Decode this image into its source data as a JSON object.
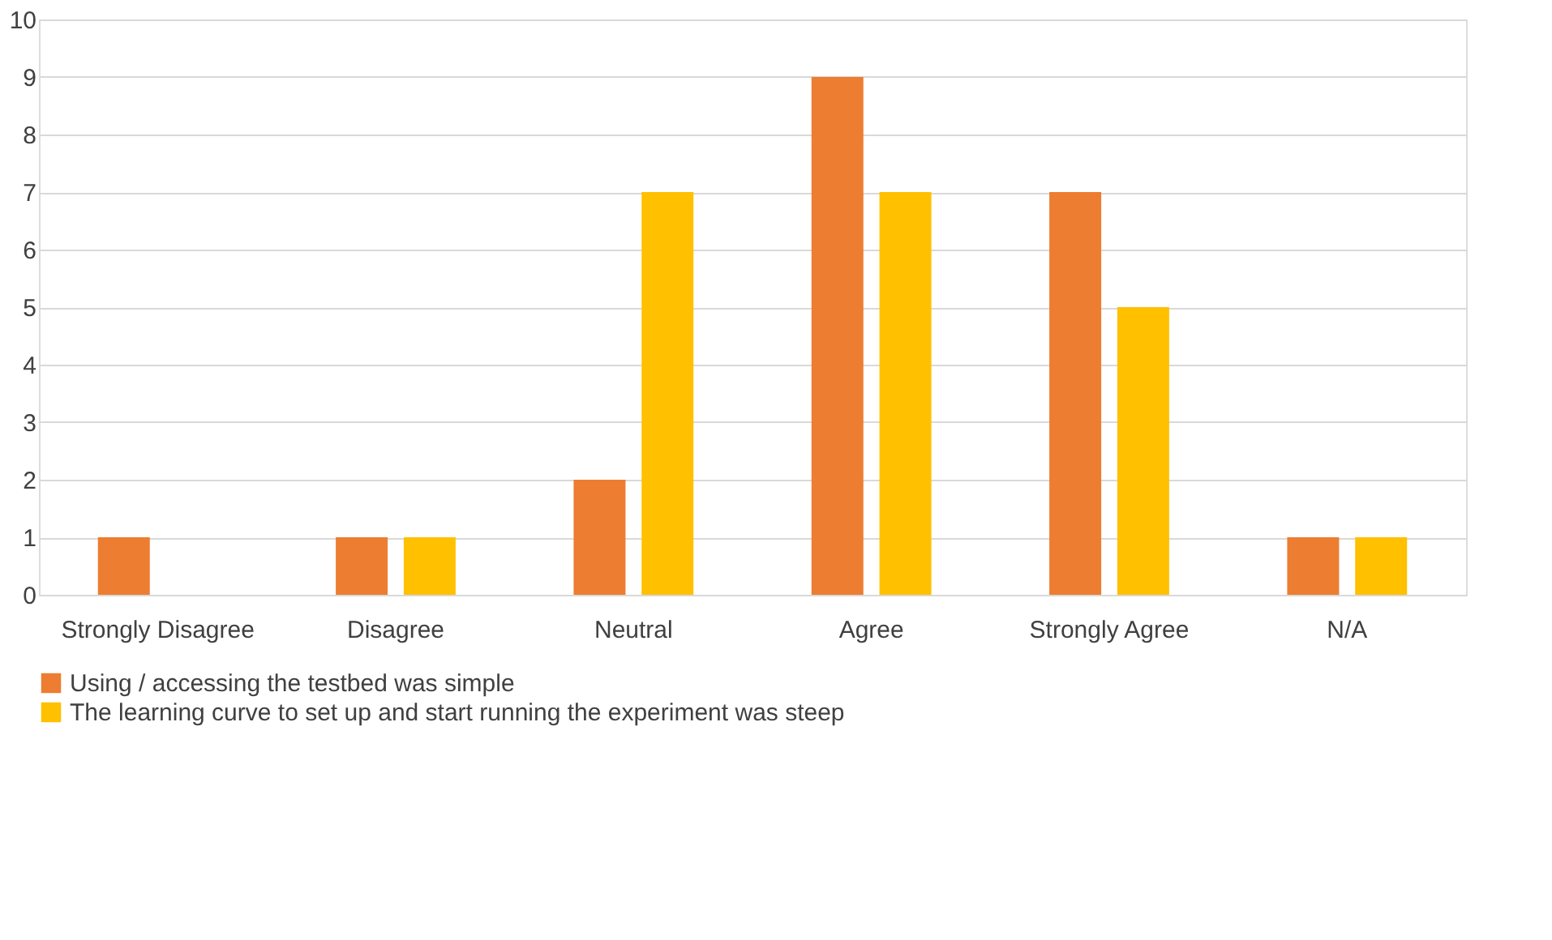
{
  "chart_data": {
    "type": "bar",
    "categories": [
      "Strongly Disagree",
      "Disagree",
      "Neutral",
      "Agree",
      "Strongly Agree",
      "N/A"
    ],
    "series": [
      {
        "name": "Using / accessing the testbed was simple",
        "color": "#ed7d31",
        "values": [
          1,
          1,
          2,
          9,
          7,
          1
        ]
      },
      {
        "name": "The learning curve to set up and start running the experiment was steep",
        "color": "#ffc000",
        "values": [
          0,
          1,
          7,
          7,
          5,
          1
        ]
      }
    ],
    "ylim": [
      0,
      10
    ],
    "yticks": [
      0,
      1,
      2,
      3,
      4,
      5,
      6,
      7,
      8,
      9,
      10
    ],
    "grid": "y",
    "legend": "bottom"
  }
}
